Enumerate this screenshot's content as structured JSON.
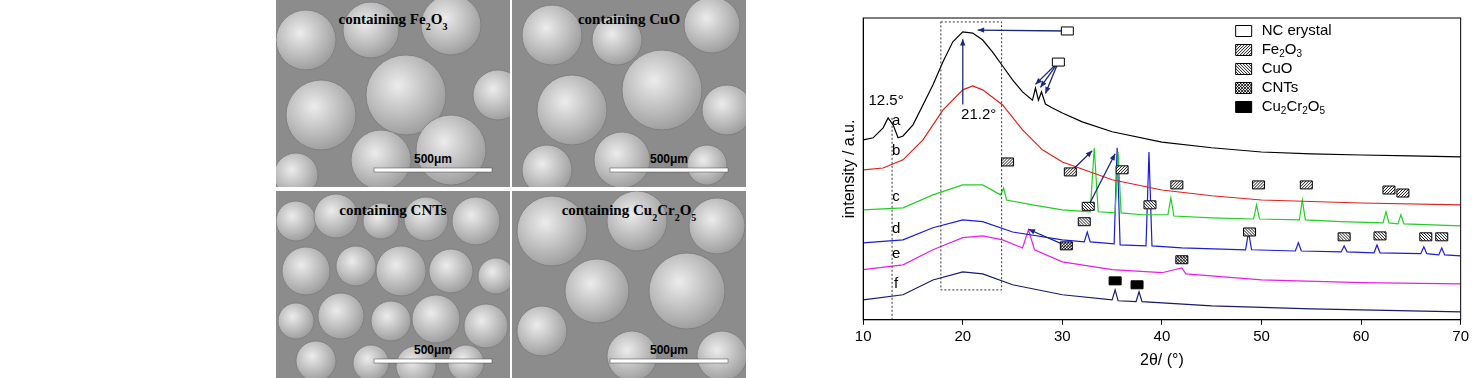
{
  "panels": [
    {
      "label": "containing Fe2O3",
      "scale_bar": "500μm"
    },
    {
      "label": "containing CuO",
      "scale_bar": "500μm"
    },
    {
      "label": "containing CNTs",
      "scale_bar": "500μm"
    },
    {
      "label": "containing Cu2Cr2O5",
      "scale_bar": "500μm"
    }
  ],
  "chart_data": {
    "type": "line",
    "x_label": "2θ/ (°)",
    "y_label": "intensity / a.u.",
    "xlim": [
      10,
      70
    ],
    "xticks": [
      10,
      20,
      30,
      40,
      50,
      60,
      70
    ],
    "ylim": [
      0,
      100
    ],
    "tick_labels": "x",
    "grid": false,
    "legend": "upper right",
    "series": [
      {
        "name": "a",
        "color": "#000000",
        "x": [
          10,
          11,
          12,
          12.5,
          13,
          13.5,
          14,
          15,
          16,
          17,
          18,
          19,
          20,
          21,
          22,
          23,
          24,
          25,
          26,
          27,
          27.3,
          27.6,
          27.9,
          28.3,
          29,
          30,
          32,
          35,
          40,
          45,
          50,
          55,
          60,
          65,
          70
        ],
        "values": [
          59.6,
          60.3,
          63.6,
          66.9,
          64.6,
          60.3,
          60.9,
          64.6,
          71.2,
          77.8,
          85.4,
          92.1,
          95.4,
          95,
          92.7,
          88.7,
          84.1,
          79.5,
          75.5,
          72.8,
          76.8,
          72.8,
          75.5,
          71.5,
          70.2,
          68.5,
          65.6,
          62.3,
          58.9,
          57,
          55.6,
          55,
          54.6,
          54.3,
          54
        ]
      },
      {
        "name": "b",
        "color": "#e0201e",
        "x": [
          10,
          12,
          14,
          16,
          18,
          20,
          21,
          22,
          24,
          26,
          28,
          30,
          35,
          40,
          45,
          50,
          60,
          70
        ],
        "values": [
          49.7,
          50.3,
          53,
          59.6,
          69.5,
          76.2,
          77.5,
          76.2,
          71.2,
          62.9,
          56.3,
          52.3,
          46.4,
          43,
          41.1,
          39.7,
          38.7,
          38.1
        ]
      },
      {
        "name": "c",
        "color": "#22d022",
        "x": [
          10,
          14,
          17,
          20,
          22,
          23.8,
          24.1,
          24.4,
          27,
          30,
          32.8,
          33.2,
          33.6,
          35.3,
          35.6,
          35.9,
          38,
          40.6,
          40.9,
          41.2,
          45,
          49.2,
          49.5,
          49.8,
          53.8,
          54.1,
          54.4,
          58,
          62.2,
          62.5,
          62.8,
          63.7,
          64,
          64.3,
          70
        ],
        "values": [
          36.4,
          37.1,
          41.4,
          44.7,
          44.7,
          41.4,
          43.7,
          39.7,
          38.1,
          36.4,
          35.8,
          57,
          35.8,
          35.4,
          55.6,
          35.4,
          34.8,
          34.8,
          40.4,
          34.4,
          33.8,
          33.4,
          38.1,
          33.4,
          33.1,
          39.7,
          33.1,
          32.5,
          32.1,
          35.8,
          32.1,
          31.8,
          34.8,
          31.8,
          31.1
        ]
      },
      {
        "name": "d",
        "color": "#1c1cd8",
        "x": [
          10,
          14,
          17,
          20,
          22,
          25,
          30,
          32.2,
          32.5,
          32.8,
          35.2,
          35.5,
          35.8,
          38.4,
          38.7,
          39,
          42,
          48.4,
          48.7,
          49,
          53.4,
          53.7,
          54,
          58,
          58.3,
          58.6,
          61.3,
          61.6,
          61.9,
          66,
          66.3,
          66.6,
          67.8,
          68.1,
          68.4,
          70
        ],
        "values": [
          25.5,
          26.5,
          30.5,
          33.1,
          32.5,
          29.1,
          26.5,
          25.8,
          29.1,
          25.8,
          25.2,
          57,
          24.8,
          24.5,
          55.6,
          24.5,
          23.8,
          23.2,
          29.1,
          23.2,
          22.8,
          25.5,
          22.8,
          22.5,
          24.5,
          22.5,
          22.2,
          24.8,
          22.2,
          21.9,
          24.2,
          21.9,
          21.5,
          23.8,
          21.5,
          21.2
        ]
      },
      {
        "name": "e",
        "color": "#e81fe8",
        "x": [
          10,
          14,
          17,
          20,
          22,
          24,
          26,
          26.6,
          27.2,
          30,
          35,
          40,
          42,
          42.4,
          50,
          60,
          70
        ],
        "values": [
          16.6,
          18.2,
          23.2,
          27.2,
          27.8,
          26.5,
          23.8,
          29.8,
          23.2,
          19.2,
          16.6,
          15.6,
          17.2,
          15.2,
          13.2,
          12.3,
          11.9
        ]
      },
      {
        "name": "f",
        "color": "#1a1a70",
        "x": [
          10,
          14,
          17,
          20,
          22,
          25,
          30,
          35,
          35.3,
          35.6,
          37.4,
          37.7,
          38,
          45,
          55,
          70
        ],
        "values": [
          6.6,
          8.3,
          13.2,
          15.9,
          15.2,
          11.6,
          8.3,
          6.6,
          9.9,
          6.3,
          6,
          9.3,
          6,
          4.6,
          3.6,
          2.6
        ]
      }
    ],
    "phases": [
      {
        "name": "NC erystal",
        "marker": "open"
      },
      {
        "name": "Fe2O3",
        "marker": "hatch"
      },
      {
        "name": "CuO",
        "marker": "backhatch"
      },
      {
        "name": "CNTs",
        "marker": "crosshatch"
      },
      {
        "name": "Cu2Cr2O5",
        "marker": "filled"
      }
    ],
    "phase_marks": [
      {
        "phase": "NC erystal",
        "x": 30.5,
        "y": 95.7,
        "points_to": [
          [
            21.5,
            96
          ]
        ]
      },
      {
        "phase": "NC erystal",
        "x": 29.6,
        "y": 85.4,
        "points_to": [
          [
            27.3,
            78
          ],
          [
            27.8,
            77
          ],
          [
            28.3,
            75
          ]
        ]
      },
      {
        "phase": "Fe2O3",
        "x": 24.5,
        "y": 52.3
      },
      {
        "phase": "Fe2O3",
        "x": 30.8,
        "y": 49,
        "points_to": [
          [
            33,
            56
          ]
        ]
      },
      {
        "phase": "Fe2O3",
        "x": 36,
        "y": 49.7
      },
      {
        "phase": "Fe2O3",
        "x": 41.5,
        "y": 44.7
      },
      {
        "phase": "Fe2O3",
        "x": 49.7,
        "y": 44.7
      },
      {
        "phase": "Fe2O3",
        "x": 54.5,
        "y": 44.7
      },
      {
        "phase": "Fe2O3",
        "x": 62.8,
        "y": 43
      },
      {
        "phase": "Fe2O3",
        "x": 64.2,
        "y": 42
      },
      {
        "phase": "CuO",
        "x": 32.2,
        "y": 32.5
      },
      {
        "phase": "CuO",
        "x": 32.6,
        "y": 37.6,
        "points_to": [
          [
            35.3,
            55
          ]
        ]
      },
      {
        "phase": "CuO",
        "x": 38.8,
        "y": 38.1
      },
      {
        "phase": "CuO",
        "x": 48.8,
        "y": 29.1
      },
      {
        "phase": "CuO",
        "x": 58.3,
        "y": 27.5
      },
      {
        "phase": "CuO",
        "x": 61.9,
        "y": 27.8
      },
      {
        "phase": "CuO",
        "x": 66.5,
        "y": 27.5
      },
      {
        "phase": "CuO",
        "x": 68.1,
        "y": 27.5
      },
      {
        "phase": "CNTs",
        "x": 30.4,
        "y": 24.5,
        "points_to": [
          [
            26.6,
            30
          ]
        ]
      },
      {
        "phase": "CNTs",
        "x": 42,
        "y": 19.9
      },
      {
        "phase": "Cu2Cr2O5",
        "x": 35.3,
        "y": 12.9
      },
      {
        "phase": "Cu2Cr2O5",
        "x": 37.5,
        "y": 11.6
      }
    ],
    "annotations": [
      {
        "text": "12.5°",
        "x": 12.3,
        "y": 72.5
      },
      {
        "text": "21.2°",
        "x": 21.6,
        "y": 68,
        "points_to": [
          20,
          93
        ]
      }
    ],
    "dashed_lines": [
      {
        "x": 12.9,
        "y": [
          0,
          67
        ]
      }
    ],
    "dashed_regions": [
      {
        "x": [
          17.8,
          23.9
        ],
        "y": [
          9.9,
          98.7
        ]
      }
    ]
  }
}
